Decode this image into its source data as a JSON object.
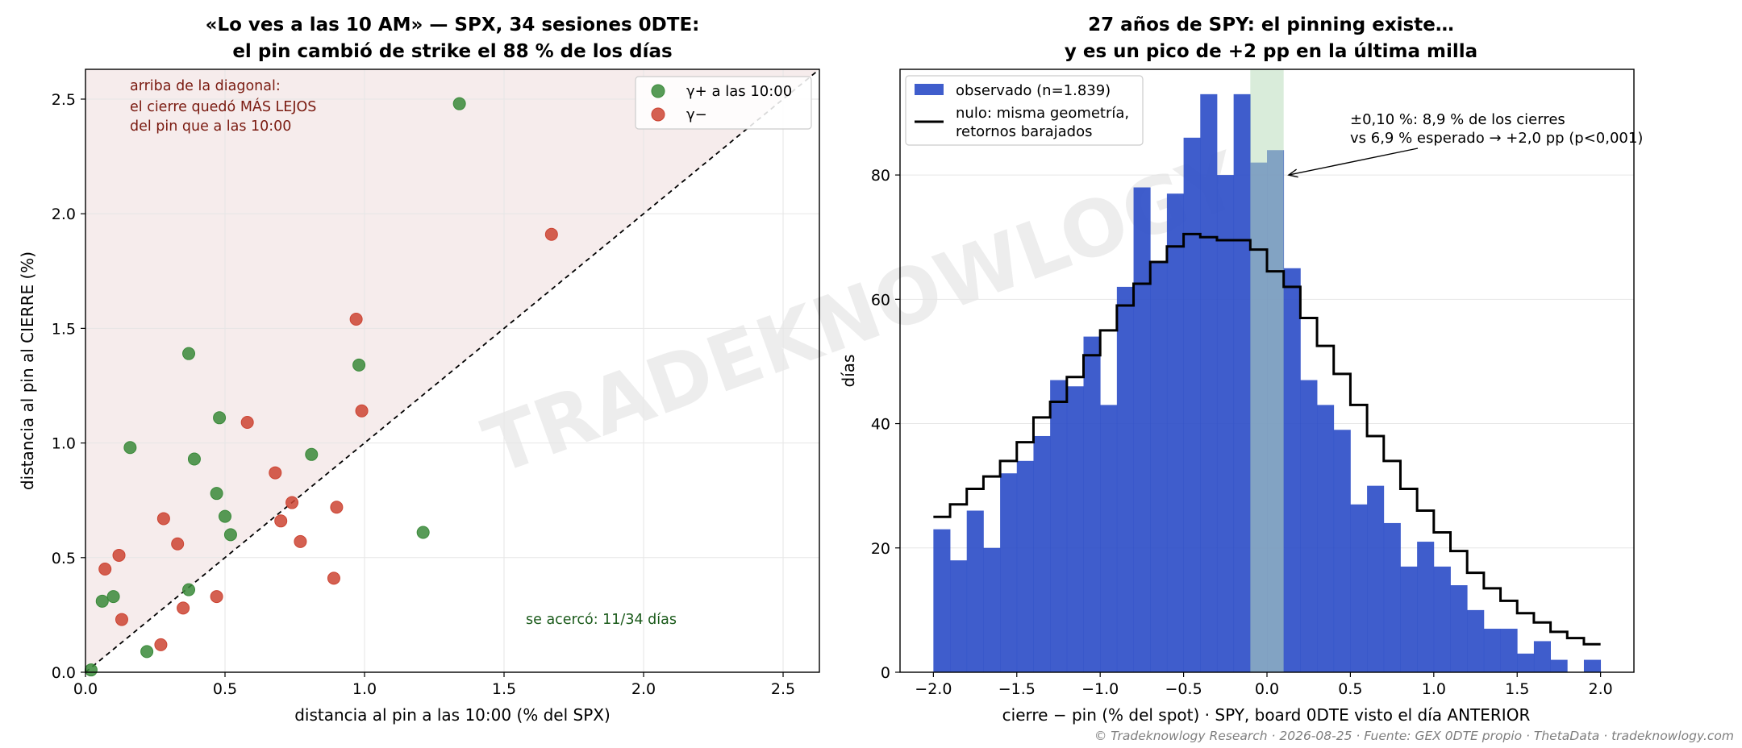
{
  "watermark": "TRADEKNOWLOGY",
  "footer": "© Tradeknowlogy Research   ·   2026-08-25   ·   Fuente: GEX 0DTE propio · ThetaData   ·   tradeknowlogy.com",
  "colors": {
    "gamma_pos": "#3a8a3a",
    "gamma_neg": "#cc4433",
    "shade_above": "#f6ecec",
    "annotation_red": "#7a1a10",
    "annotation_green": "#1a5a1a",
    "observed_bar": "#2f4fc8",
    "pin_band": "#b9dcbc",
    "null_line": "#000000",
    "grid": "#e6e6e6"
  },
  "chart_data": [
    {
      "type": "scatter",
      "title_line1": "«Lo ves a las 10 AM» — SPX, 34 sesiones 0DTE:",
      "title_line2": "el pin cambió de strike el 88 % de los días",
      "xlabel": "distancia al pin a las 10:00 (% del SPX)",
      "ylabel": "distancia al pin al CIERRE (%)",
      "xlim": [
        0,
        2.63
      ],
      "ylim": [
        0,
        2.63
      ],
      "xticks": [
        0.0,
        0.5,
        1.0,
        1.5,
        2.0,
        2.5
      ],
      "yticks": [
        0.0,
        0.5,
        1.0,
        1.5,
        2.0,
        2.5
      ],
      "tick_labels": [
        "0.0",
        "0.5",
        "1.0",
        "1.5",
        "2.0",
        "2.5"
      ],
      "grid": true,
      "diagonal": "y = x (dashed)",
      "legend_position": "top-right",
      "annotation_above": [
        "arriba de la diagonal:",
        "el cierre quedó MÁS LEJOS",
        "del pin que a las 10:00"
      ],
      "annotation_count": "se acercó: 11/34 días",
      "series": [
        {
          "name": "γ+ a las 10:00",
          "color": "#3a8a3a",
          "points": [
            [
              1.34,
              2.48
            ],
            [
              0.37,
              1.39
            ],
            [
              0.98,
              1.34
            ],
            [
              0.48,
              1.11
            ],
            [
              0.16,
              0.98
            ],
            [
              0.39,
              0.93
            ],
            [
              0.81,
              0.95
            ],
            [
              0.47,
              0.78
            ],
            [
              0.5,
              0.68
            ],
            [
              0.52,
              0.6
            ],
            [
              1.21,
              0.61
            ],
            [
              0.37,
              0.36
            ],
            [
              0.1,
              0.33
            ],
            [
              0.06,
              0.31
            ],
            [
              0.22,
              0.09
            ],
            [
              0.02,
              0.01
            ]
          ]
        },
        {
          "name": "γ−",
          "color": "#cc4433",
          "points": [
            [
              1.67,
              1.91
            ],
            [
              0.97,
              1.54
            ],
            [
              0.99,
              1.14
            ],
            [
              0.58,
              1.09
            ],
            [
              0.68,
              0.87
            ],
            [
              0.74,
              0.74
            ],
            [
              0.9,
              0.72
            ],
            [
              0.28,
              0.67
            ],
            [
              0.7,
              0.66
            ],
            [
              0.77,
              0.57
            ],
            [
              0.33,
              0.56
            ],
            [
              0.12,
              0.51
            ],
            [
              0.07,
              0.45
            ],
            [
              0.89,
              0.41
            ],
            [
              0.47,
              0.33
            ],
            [
              0.35,
              0.28
            ],
            [
              0.13,
              0.23
            ],
            [
              0.27,
              0.12
            ]
          ]
        }
      ]
    },
    {
      "type": "bar",
      "title_line1": "27 años de SPY: el pinning existe…",
      "title_line2": "y es un pico de +2 pp en la última milla",
      "xlabel": "cierre − pin (% del spot) · SPY, board 0DTE visto el día ANTERIOR",
      "ylabel": "días",
      "xlim": [
        -2.2,
        2.2
      ],
      "ylim": [
        0,
        97
      ],
      "xticks": [
        -2.0,
        -1.5,
        -1.0,
        -0.5,
        0.0,
        0.5,
        1.0,
        1.5,
        2.0
      ],
      "xtick_labels": [
        "−2.0",
        "−1.5",
        "−1.0",
        "−0.5",
        "0.0",
        "0.5",
        "1.0",
        "1.5",
        "2.0"
      ],
      "yticks": [
        0,
        20,
        40,
        60,
        80
      ],
      "ytick_labels": [
        "0",
        "20",
        "40",
        "60",
        "80"
      ],
      "grid": true,
      "legend_position": "top-left",
      "bin_start": -2.0,
      "bin_width": 0.1,
      "pin_band": [
        -0.1,
        0.1
      ],
      "series": [
        {
          "name": "observado (n=1.839)",
          "values": [
            23,
            18,
            26,
            20,
            32,
            34,
            38,
            47,
            46,
            54,
            43,
            62,
            78,
            66,
            77,
            86,
            93,
            80,
            93,
            82,
            84,
            65,
            47,
            43,
            39,
            27,
            30,
            24,
            17,
            21,
            17,
            14,
            10,
            7,
            7,
            3,
            5,
            2,
            0,
            2
          ]
        },
        {
          "name": "nulo: misma geometría,\nretornos barajados",
          "label_lines": [
            "nulo: misma geometría,",
            "retornos barajados"
          ],
          "values": [
            25,
            27,
            29.5,
            31.5,
            34,
            37,
            41,
            43.5,
            47.5,
            51,
            55,
            59,
            62.5,
            66,
            68.5,
            70.5,
            70,
            69.5,
            69.5,
            68,
            64.5,
            62,
            57,
            52.5,
            48,
            43,
            38,
            34,
            29.5,
            26,
            22.5,
            19.5,
            16,
            13.5,
            11.5,
            9.5,
            8,
            6.5,
            5.5,
            4.5
          ]
        }
      ],
      "annotation": [
        "±0,10 %: 8,9 % de los cierres",
        "vs 6,9 % esperado → +2,0 pp (p<0,001)"
      ],
      "annotation_target": [
        0.13,
        80
      ]
    }
  ]
}
